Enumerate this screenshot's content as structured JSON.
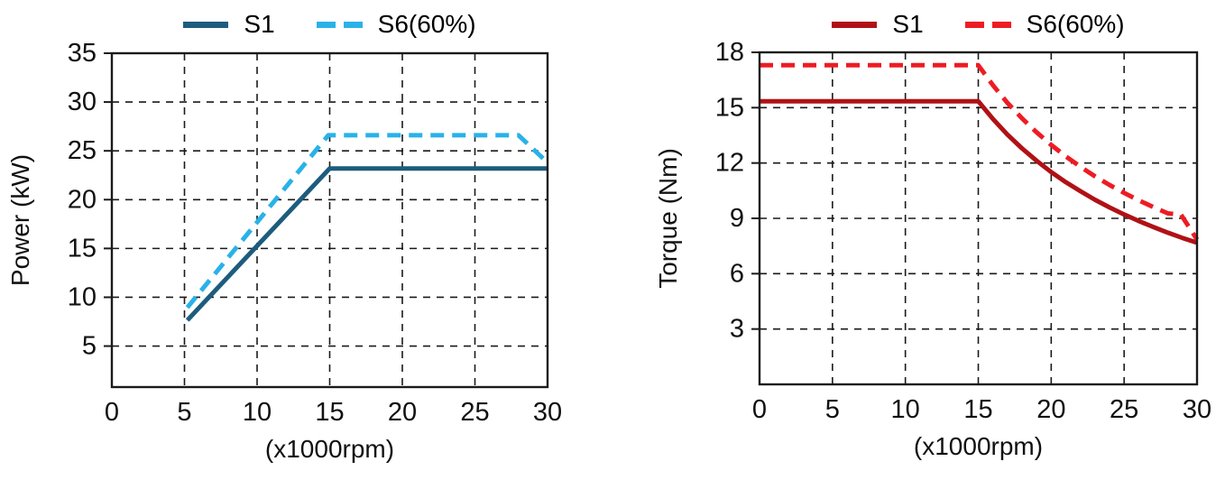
{
  "page": {
    "background": "#ffffff"
  },
  "chart_data": [
    {
      "name": "power-chart",
      "type": "line",
      "title": "",
      "xlabel": "(x1000rpm)",
      "ylabel": "Power (kW)",
      "xlim": [
        0,
        30
      ],
      "ylim": [
        0.8,
        35
      ],
      "xticks": [
        0,
        5,
        10,
        15,
        20,
        25,
        30
      ],
      "yticks": [
        5,
        10,
        15,
        20,
        25,
        30,
        35
      ],
      "grid": true,
      "legend_position": "top",
      "series": [
        {
          "name": "S1",
          "style": "solid",
          "color": "#1d5c7d",
          "points": [
            [
              5.2,
              7.65
            ],
            [
              15,
              23.2
            ],
            [
              30,
              23.2
            ]
          ]
        },
        {
          "name": "S6(60%)",
          "style": "dashed",
          "color": "#29b2e8",
          "points": [
            [
              5.2,
              8.95
            ],
            [
              14.9,
              26.6
            ],
            [
              28,
              26.6
            ],
            [
              30,
              23.8
            ]
          ]
        }
      ]
    },
    {
      "name": "torque-chart",
      "type": "line",
      "title": "",
      "xlabel": "(x1000rpm)",
      "ylabel": "Torque (Nm)",
      "xlim": [
        0,
        30
      ],
      "ylim": [
        0,
        18
      ],
      "xticks": [
        0,
        5,
        10,
        15,
        20,
        25,
        30
      ],
      "yticks": [
        3,
        6,
        9,
        12,
        15,
        18
      ],
      "grid": true,
      "legend_position": "top",
      "series": [
        {
          "name": "S1",
          "style": "solid",
          "color": "#b01116",
          "points": [
            [
              0,
              15.35
            ],
            [
              15,
              15.35
            ],
            [
              16,
              14.39
            ],
            [
              17,
              13.54
            ],
            [
              18,
              12.79
            ],
            [
              19,
              12.12
            ],
            [
              20,
              11.51
            ],
            [
              21,
              10.96
            ],
            [
              22,
              10.47
            ],
            [
              23,
              10.01
            ],
            [
              24,
              9.59
            ],
            [
              25,
              9.21
            ],
            [
              26,
              8.86
            ],
            [
              27,
              8.53
            ],
            [
              28,
              8.22
            ],
            [
              29,
              7.94
            ],
            [
              30,
              7.68
            ]
          ]
        },
        {
          "name": "S6(60%)",
          "style": "dashed",
          "color": "#ee1c23",
          "points": [
            [
              0,
              17.3
            ],
            [
              15,
              17.3
            ],
            [
              16,
              16.22
            ],
            [
              17,
              15.26
            ],
            [
              18,
              14.42
            ],
            [
              19,
              13.66
            ],
            [
              20,
              12.98
            ],
            [
              21,
              12.36
            ],
            [
              22,
              11.8
            ],
            [
              23,
              11.28
            ],
            [
              24,
              10.81
            ],
            [
              25,
              10.38
            ],
            [
              26,
              9.98
            ],
            [
              27,
              9.61
            ],
            [
              28,
              9.27
            ],
            [
              28.9,
              9.2
            ],
            [
              30,
              7.85
            ]
          ]
        }
      ]
    }
  ]
}
